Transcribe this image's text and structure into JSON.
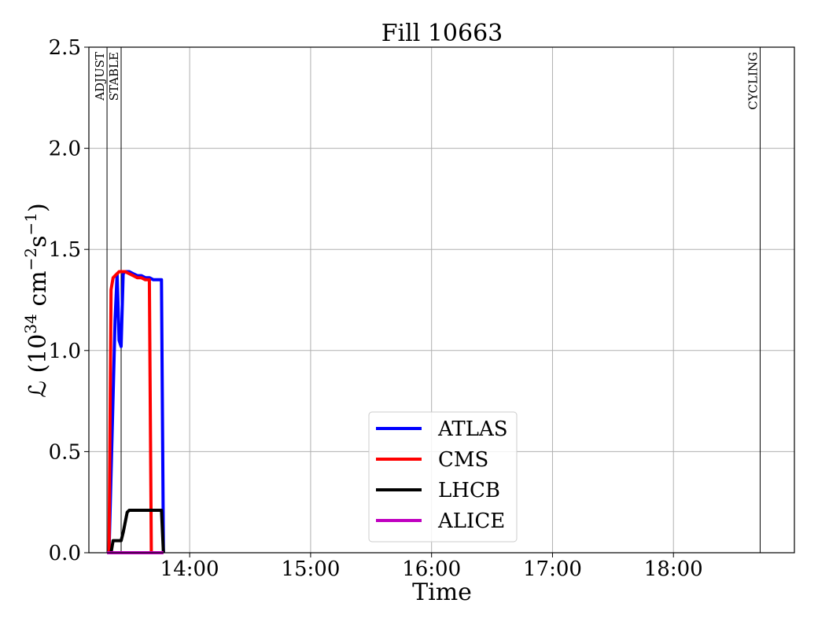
{
  "chart_data": {
    "type": "line",
    "title": "Fill 10663",
    "xlabel": "Time",
    "ylabel_parts": {
      "main": "ℒ (10",
      "exp1": "34",
      "mid": " cm",
      "exp2": "−2",
      "mid2": "s",
      "exp3": "−1",
      "end": ")"
    },
    "xlim": [
      "13:10",
      "19:00"
    ],
    "ylim": [
      0,
      2.5
    ],
    "x_ticks": [
      "14:00",
      "15:00",
      "16:00",
      "17:00",
      "18:00"
    ],
    "y_ticks": [
      "0.0",
      "0.5",
      "1.0",
      "1.5",
      "2.0",
      "2.5"
    ],
    "grid": true,
    "legend_position": "lower-center",
    "phase_markers": [
      {
        "label": "ADJUST",
        "time": "13:19"
      },
      {
        "label": "STABLE",
        "time": "13:26"
      },
      {
        "label": "CYCLING",
        "time": "18:43"
      }
    ],
    "series": [
      {
        "name": "ATLAS",
        "color": "#0000ff",
        "x": [
          "13:20",
          "13:23",
          "13:24",
          "13:25",
          "13:26",
          "13:27",
          "13:28",
          "13:30",
          "13:32",
          "13:34",
          "13:36",
          "13:38",
          "13:40",
          "13:42",
          "13:44",
          "13:46",
          "13:47"
        ],
        "y": [
          0.0,
          1.15,
          1.38,
          1.05,
          1.02,
          1.38,
          1.39,
          1.39,
          1.38,
          1.37,
          1.37,
          1.36,
          1.36,
          1.35,
          1.35,
          1.35,
          0.0
        ]
      },
      {
        "name": "CMS",
        "color": "#ff0000",
        "x": [
          "13:20",
          "13:21",
          "13:22",
          "13:23",
          "13:24",
          "13:25",
          "13:26",
          "13:28",
          "13:30",
          "13:32",
          "13:34",
          "13:36",
          "13:38",
          "13:40",
          "13:41"
        ],
        "y": [
          0.0,
          1.3,
          1.36,
          1.37,
          1.38,
          1.39,
          1.39,
          1.39,
          1.38,
          1.37,
          1.36,
          1.36,
          1.35,
          1.35,
          0.0
        ]
      },
      {
        "name": "LHCB",
        "color": "#000000",
        "x": [
          "13:20",
          "13:21",
          "13:22",
          "13:26",
          "13:27",
          "13:29",
          "13:30",
          "13:34",
          "13:38",
          "13:42",
          "13:46",
          "13:47"
        ],
        "y": [
          0.0,
          0.0,
          0.06,
          0.06,
          0.1,
          0.2,
          0.21,
          0.21,
          0.21,
          0.21,
          0.21,
          0.0
        ]
      },
      {
        "name": "ALICE",
        "color": "#c000c0",
        "x": [
          "13:19",
          "13:47"
        ],
        "y": [
          0.0,
          0.0
        ]
      }
    ]
  }
}
